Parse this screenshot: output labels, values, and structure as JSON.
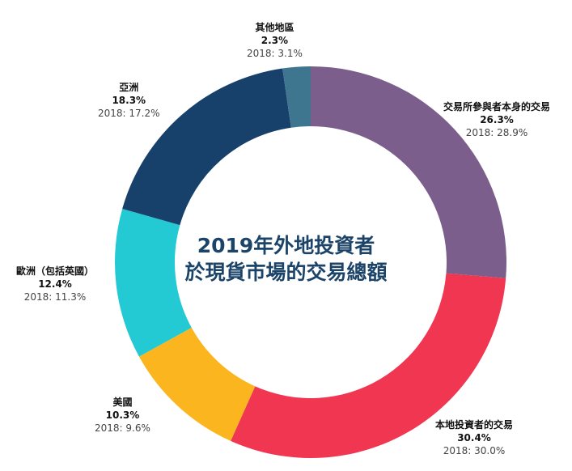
{
  "chart_data": {
    "type": "pie",
    "title_line1": "2019年外地投資者",
    "title_line2": "於現貨市場的交易總額",
    "slices": [
      {
        "name": "交易所參與者本身的交易",
        "value": 26.3,
        "percent_label": "26.3%",
        "prev_label": "2018: 28.9%",
        "color": "#7b5e8c"
      },
      {
        "name": "本地投資者的交易",
        "value": 30.4,
        "percent_label": "30.4%",
        "prev_label": "2018: 30.0%",
        "color": "#f03650"
      },
      {
        "name": "美國",
        "value": 10.3,
        "percent_label": "10.3%",
        "prev_label": "2018: 9.6%",
        "color": "#fbb51f"
      },
      {
        "name": "歐洲（包括英國）",
        "value": 12.4,
        "percent_label": "12.4%",
        "prev_label": "2018: 11.3%",
        "color": "#23c9d3"
      },
      {
        "name": "亞洲",
        "value": 18.3,
        "percent_label": "18.3%",
        "prev_label": "2018: 17.2%",
        "color": "#17416b"
      },
      {
        "name": "其他地區",
        "value": 2.3,
        "percent_label": "2.3%",
        "prev_label": "2018: 3.1%",
        "color": "#3e7690"
      }
    ]
  }
}
